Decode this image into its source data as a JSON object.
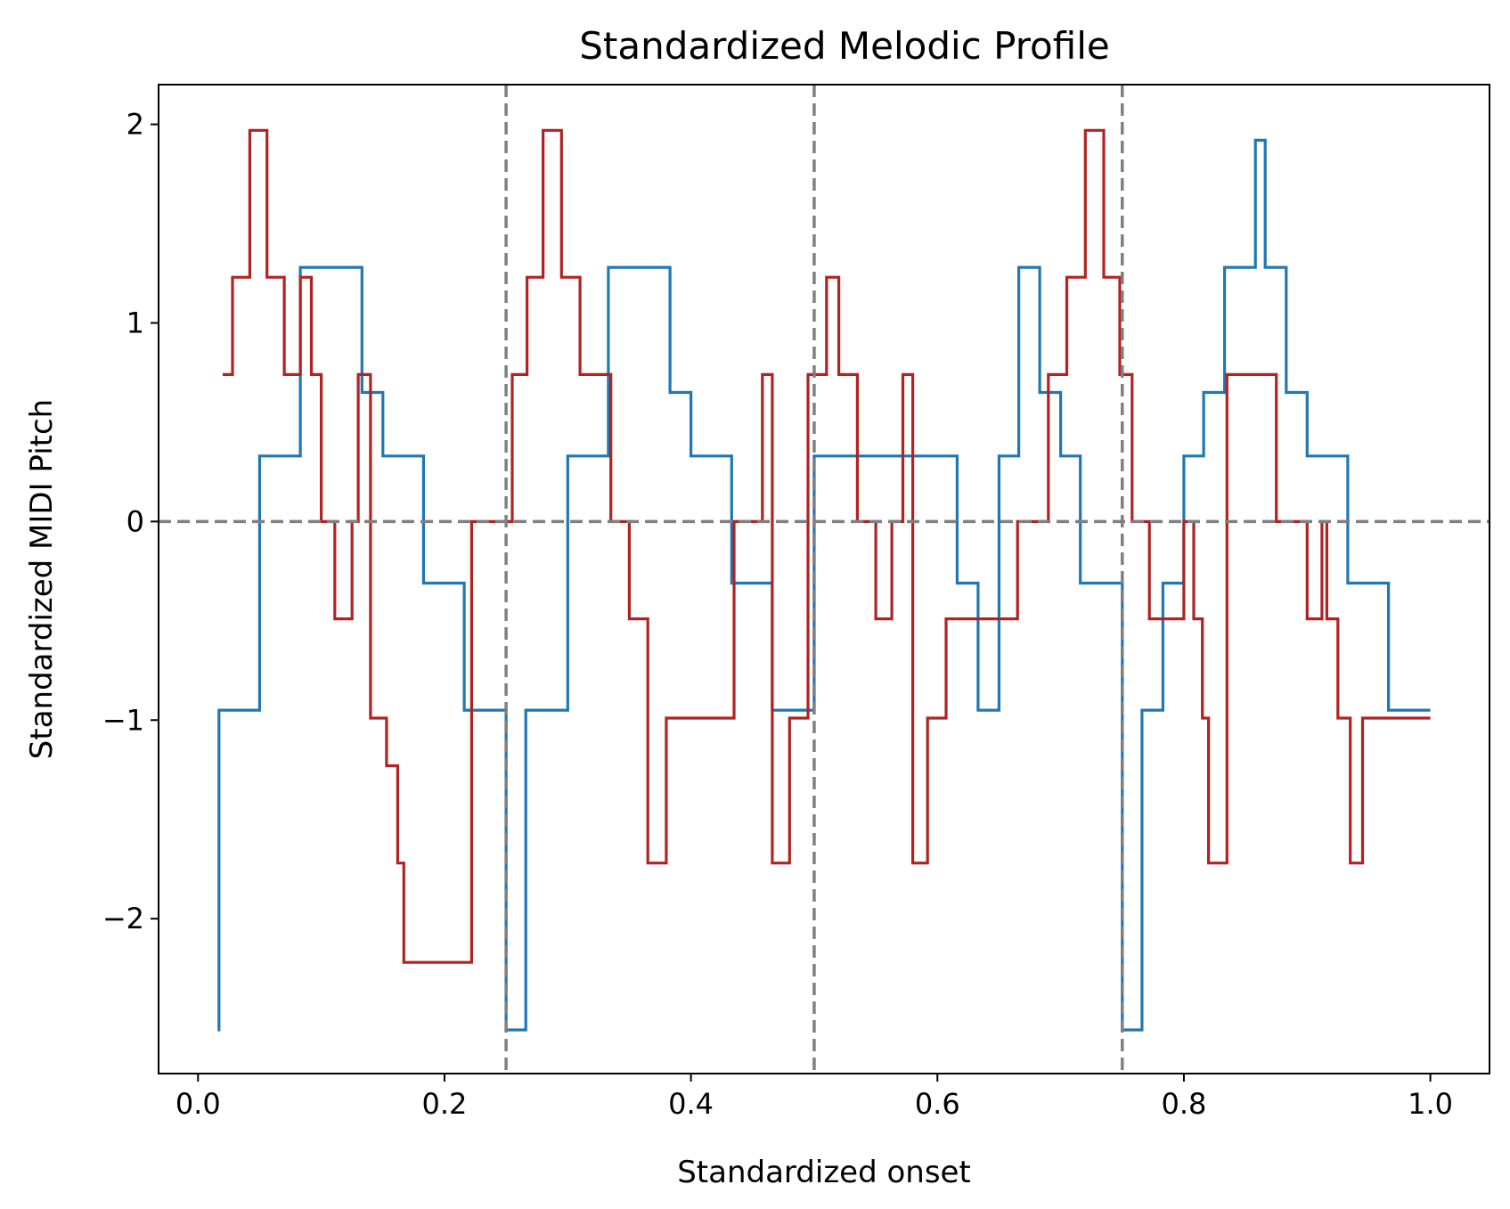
{
  "chart_data": {
    "type": "line",
    "title": "Standardized Melodic Profile",
    "xlabel": "Standardized onset",
    "ylabel": "Standardized MIDI Pitch",
    "xlim": [
      -0.032,
      1.048
    ],
    "ylim": [
      -2.78,
      2.2
    ],
    "xticks": [
      0.0,
      0.2,
      0.4,
      0.6,
      0.8,
      1.0
    ],
    "xtick_labels": [
      "0.0",
      "0.2",
      "0.4",
      "0.6",
      "0.8",
      "1.0"
    ],
    "yticks": [
      -2,
      -1,
      0,
      1,
      2
    ],
    "ytick_labels": [
      "−2",
      "−1",
      "0",
      "1",
      "2"
    ],
    "grid": false,
    "reference_lines": {
      "horizontal": [
        0
      ],
      "vertical": [
        0.25,
        0.5,
        0.75
      ],
      "color": "#808080",
      "style": "dashed"
    },
    "series": [
      {
        "color": "#1f77b4",
        "step": "post",
        "points": [
          [
            0.016,
            -2.56
          ],
          [
            0.017,
            -0.95
          ],
          [
            0.05,
            0.33
          ],
          [
            0.083,
            1.28
          ],
          [
            0.133,
            0.65
          ],
          [
            0.15,
            0.33
          ],
          [
            0.183,
            -0.31
          ],
          [
            0.216,
            -0.95
          ],
          [
            0.25,
            -2.56
          ],
          [
            0.266,
            -0.95
          ],
          [
            0.3,
            0.33
          ],
          [
            0.333,
            1.28
          ],
          [
            0.383,
            0.65
          ],
          [
            0.4,
            0.33
          ],
          [
            0.433,
            -0.31
          ],
          [
            0.466,
            -0.95
          ],
          [
            0.5,
            0.33
          ],
          [
            0.616,
            -0.31
          ],
          [
            0.633,
            -0.95
          ],
          [
            0.65,
            0.33
          ],
          [
            0.666,
            1.28
          ],
          [
            0.683,
            0.65
          ],
          [
            0.7,
            0.33
          ],
          [
            0.716,
            -0.31
          ],
          [
            0.75,
            -2.56
          ],
          [
            0.766,
            -0.95
          ],
          [
            0.783,
            -0.31
          ],
          [
            0.8,
            0.33
          ],
          [
            0.816,
            0.65
          ],
          [
            0.833,
            1.28
          ],
          [
            0.858,
            1.92
          ],
          [
            0.866,
            1.28
          ],
          [
            0.883,
            0.65
          ],
          [
            0.9,
            0.33
          ],
          [
            0.933,
            -0.31
          ],
          [
            0.966,
            -0.95
          ],
          [
            1.0,
            -0.95
          ]
        ]
      },
      {
        "color": "#b22222",
        "step": "post",
        "points": [
          [
            0.02,
            0.74
          ],
          [
            0.028,
            1.23
          ],
          [
            0.042,
            1.97
          ],
          [
            0.056,
            1.23
          ],
          [
            0.07,
            0.74
          ],
          [
            0.083,
            1.23
          ],
          [
            0.092,
            0.74
          ],
          [
            0.1,
            0.0
          ],
          [
            0.111,
            -0.49
          ],
          [
            0.125,
            0.0
          ],
          [
            0.13,
            0.74
          ],
          [
            0.14,
            -0.99
          ],
          [
            0.153,
            -1.23
          ],
          [
            0.162,
            -1.72
          ],
          [
            0.167,
            -2.22
          ],
          [
            0.222,
            0.0
          ],
          [
            0.25,
            0.0
          ],
          [
            0.255,
            0.74
          ],
          [
            0.267,
            1.23
          ],
          [
            0.28,
            1.97
          ],
          [
            0.295,
            1.23
          ],
          [
            0.31,
            0.74
          ],
          [
            0.335,
            0.0
          ],
          [
            0.35,
            -0.49
          ],
          [
            0.365,
            -1.72
          ],
          [
            0.38,
            -0.99
          ],
          [
            0.435,
            0.0
          ],
          [
            0.45,
            0.0
          ],
          [
            0.458,
            0.74
          ],
          [
            0.466,
            -1.72
          ],
          [
            0.48,
            -0.99
          ],
          [
            0.495,
            0.74
          ],
          [
            0.51,
            1.23
          ],
          [
            0.52,
            0.74
          ],
          [
            0.535,
            0.0
          ],
          [
            0.55,
            -0.49
          ],
          [
            0.563,
            0.0
          ],
          [
            0.572,
            0.74
          ],
          [
            0.58,
            -1.72
          ],
          [
            0.592,
            -0.99
          ],
          [
            0.607,
            -0.49
          ],
          [
            0.64,
            -0.49
          ],
          [
            0.665,
            0.0
          ],
          [
            0.69,
            0.74
          ],
          [
            0.705,
            1.23
          ],
          [
            0.72,
            1.97
          ],
          [
            0.735,
            1.23
          ],
          [
            0.748,
            0.74
          ],
          [
            0.758,
            0.0
          ],
          [
            0.772,
            -0.49
          ],
          [
            0.793,
            -0.49
          ],
          [
            0.8,
            0.0
          ],
          [
            0.808,
            -0.49
          ],
          [
            0.815,
            -0.99
          ],
          [
            0.82,
            -1.72
          ],
          [
            0.835,
            0.74
          ],
          [
            0.875,
            0.0
          ],
          [
            0.9,
            -0.49
          ],
          [
            0.912,
            0.0
          ],
          [
            0.916,
            -0.49
          ],
          [
            0.925,
            -0.99
          ],
          [
            0.935,
            -1.72
          ],
          [
            0.945,
            -0.99
          ],
          [
            1.0,
            -0.99
          ]
        ]
      }
    ]
  }
}
